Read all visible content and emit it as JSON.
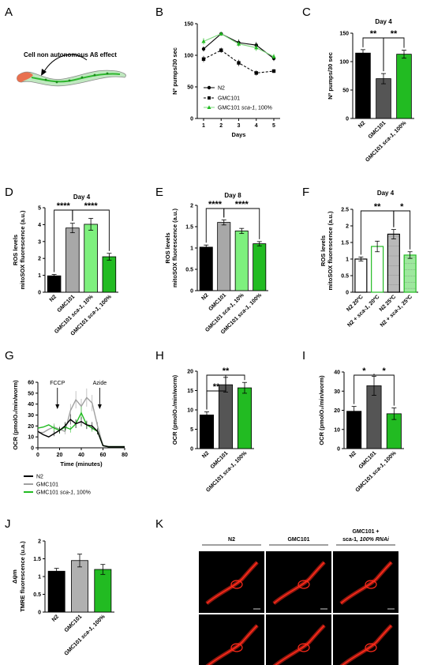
{
  "panel_letters": [
    "A",
    "B",
    "C",
    "D",
    "E",
    "F",
    "G",
    "H",
    "I",
    "J",
    "K"
  ],
  "panel_a": {
    "caption": "Cell non autonomous Aß effect"
  },
  "colors": {
    "n2": "#000000",
    "gmc101": "#9a9a9a",
    "gmc101_dark": "#555555",
    "sca1": "#22bb22",
    "sca1_light": "#7ef07e",
    "axis": "#000000",
    "micro_bg": "#000000",
    "worm_red": "#ff2a1a"
  },
  "chart_data": [
    {
      "panel": "B",
      "type": "line",
      "x": [
        1,
        2,
        3,
        4,
        5
      ],
      "xlabel": "Days",
      "ylabel": "Nº pumps/30 sec",
      "ylim": [
        0,
        150
      ],
      "yticks": [
        0,
        50,
        100,
        150
      ],
      "series": [
        {
          "name": "N2",
          "values": [
            110,
            134,
            120,
            116,
            95
          ],
          "errors": [
            4,
            3,
            5,
            5,
            4
          ],
          "style": "solid-circle"
        },
        {
          "name": "GMC101",
          "values": [
            94,
            108,
            88,
            72,
            75
          ],
          "errors": [
            5,
            4,
            5,
            4,
            3
          ],
          "style": "dashed-square"
        },
        {
          "name_parts": [
            "GMC101 ",
            "sca-1",
            ", 100%"
          ],
          "values": [
            122,
            134,
            118,
            112,
            98
          ],
          "errors": [
            5,
            3,
            4,
            5,
            4
          ],
          "style": "green-triangle"
        }
      ]
    },
    {
      "panel": "C",
      "type": "bar",
      "title": "Day 4",
      "categories": [
        [
          "N2"
        ],
        [
          "GMC101"
        ],
        [
          "GMC101 ",
          "sca-1",
          ", 100%"
        ]
      ],
      "values": [
        115,
        70,
        113
      ],
      "errors": [
        6,
        9,
        7
      ],
      "ylabel": "Nº pumps/30 sec",
      "ylim": [
        0,
        150
      ],
      "yticks": [
        0,
        50,
        100,
        150
      ],
      "significance": [
        {
          "between": [
            0,
            1
          ],
          "label": "**"
        },
        {
          "between": [
            1,
            2
          ],
          "label": "**"
        }
      ]
    },
    {
      "panel": "D",
      "type": "bar",
      "title": "Day 4",
      "categories": [
        [
          "N2"
        ],
        [
          "GMC101"
        ],
        [
          "GMC101 ",
          "sca-1",
          ", 10%"
        ],
        [
          "GMC101 ",
          "sca-1",
          ", 100%"
        ]
      ],
      "values": [
        0.97,
        3.8,
        4.02,
        2.1
      ],
      "errors": [
        0.08,
        0.28,
        0.35,
        0.2
      ],
      "ylabel": [
        "ROS levels",
        "mitoSOX fluorescence (a.u.)"
      ],
      "ylim": [
        0,
        5
      ],
      "yticks": [
        0,
        1,
        2,
        3,
        4,
        5
      ],
      "significance": [
        {
          "between": [
            0,
            1
          ],
          "label": "****"
        },
        {
          "between": [
            1,
            3
          ],
          "label": "****"
        }
      ]
    },
    {
      "panel": "E",
      "type": "bar",
      "title": "Day 8",
      "categories": [
        [
          "N2"
        ],
        [
          "GMC101"
        ],
        [
          "GMC101 ",
          "sca-1",
          ", 10%"
        ],
        [
          "GMC101 ",
          "sca-1",
          ", 100%"
        ]
      ],
      "values": [
        1.02,
        1.6,
        1.4,
        1.1
      ],
      "errors": [
        0.05,
        0.06,
        0.06,
        0.05
      ],
      "ylabel": [
        "ROS levels",
        "mitoSOX fluorescence (a.u.)"
      ],
      "ylim": [
        0,
        2
      ],
      "yticks": [
        0,
        0.5,
        1,
        1.5,
        2
      ],
      "significance": [
        {
          "between": [
            0,
            1
          ],
          "label": "****"
        },
        {
          "between": [
            1,
            3
          ],
          "label": "****"
        }
      ]
    },
    {
      "panel": "F",
      "type": "bar",
      "title": "Day 4",
      "categories": [
        [
          "N2 20ºC"
        ],
        [
          "N2 + ",
          "sca-1",
          ", 20ºC"
        ],
        [
          "N2 25ºC"
        ],
        [
          "N2 + ",
          "sca-1",
          ", 25ºC"
        ]
      ],
      "values": [
        1.0,
        1.38,
        1.75,
        1.12
      ],
      "errors": [
        0.06,
        0.16,
        0.14,
        0.1
      ],
      "ylabel": [
        "ROS levels",
        "mitoSOX fluorescence (a.u.)"
      ],
      "ylim": [
        0,
        2.5
      ],
      "yticks": [
        0,
        0.5,
        1,
        1.5,
        2,
        2.5
      ],
      "significance": [
        {
          "between": [
            0,
            2
          ],
          "label": "**"
        },
        {
          "between": [
            2,
            3
          ],
          "label": "*"
        }
      ]
    },
    {
      "panel": "G",
      "type": "line",
      "xlabel": "Time (minutes)",
      "ylabel": "OCR (pmolO₂/min/worm)",
      "xlim": [
        0,
        80
      ],
      "xticks": [
        0,
        20,
        40,
        60,
        80
      ],
      "ylim": [
        0,
        60
      ],
      "yticks": [
        0,
        10,
        20,
        30,
        40,
        50,
        60
      ],
      "annotations": [
        {
          "label": "FCCP",
          "x": 18
        },
        {
          "label": "Azide",
          "x": 57
        }
      ],
      "series": [
        {
          "name": "N2",
          "x": [
            0,
            5,
            10,
            15,
            20,
            25,
            30,
            35,
            40,
            45,
            50,
            55,
            60,
            65,
            70,
            75,
            80
          ],
          "values": [
            15,
            12,
            10,
            13,
            16,
            20,
            26,
            22,
            24,
            21,
            20,
            15,
            2,
            1,
            1,
            1,
            1
          ]
        },
        {
          "name": "GMC101",
          "x": [
            0,
            5,
            10,
            15,
            20,
            25,
            30,
            35,
            40,
            45,
            50,
            55,
            60,
            65,
            70,
            75,
            80
          ],
          "values": [
            14,
            14,
            17,
            19,
            17,
            15,
            34,
            44,
            38,
            46,
            41,
            20,
            2,
            1,
            1,
            1,
            1
          ]
        },
        {
          "name_parts": [
            "GMC101 ",
            "sca-1",
            ", 100%"
          ],
          "x": [
            0,
            5,
            10,
            15,
            20,
            25,
            30,
            35,
            40,
            45,
            50,
            55,
            60,
            65,
            70,
            75,
            80
          ],
          "values": [
            18,
            19,
            21,
            18,
            16,
            19,
            17,
            22,
            32,
            21,
            18,
            15,
            2,
            1,
            1,
            1,
            1
          ]
        }
      ]
    },
    {
      "panel": "H",
      "type": "bar",
      "categories": [
        [
          "N2"
        ],
        [
          "GMC101"
        ],
        [
          "GMC101 ",
          "sca-1",
          ", 100%"
        ]
      ],
      "values": [
        8.7,
        16.5,
        15.7
      ],
      "errors": [
        0.8,
        1.9,
        1.4
      ],
      "ylabel": "OCR (pmolO₂/min/worm)",
      "ylim": [
        0,
        20
      ],
      "yticks": [
        0,
        5,
        10,
        15,
        20
      ],
      "significance": [
        {
          "between": [
            0,
            1
          ],
          "label": "**"
        },
        {
          "between": [
            0,
            2
          ],
          "label": "**"
        }
      ]
    },
    {
      "panel": "I",
      "type": "bar",
      "categories": [
        [
          "N2"
        ],
        [
          "GMC101"
        ],
        [
          "GMC101 ",
          "sca-1",
          ", 100%"
        ]
      ],
      "values": [
        19.5,
        32.8,
        18.2
      ],
      "errors": [
        2.5,
        5.0,
        3.0
      ],
      "ylabel": "OCR (pmolO₂/min/worm)",
      "ylim": [
        0,
        40
      ],
      "yticks": [
        0,
        10,
        20,
        30,
        40
      ],
      "significance": [
        {
          "between": [
            0,
            1
          ],
          "label": "*"
        },
        {
          "between": [
            1,
            2
          ],
          "label": "*"
        }
      ]
    },
    {
      "panel": "J",
      "type": "bar",
      "categories": [
        [
          "N2"
        ],
        [
          "GMC101"
        ],
        [
          "GMC101 ",
          "sca-1",
          ", 100%"
        ]
      ],
      "values": [
        1.15,
        1.45,
        1.2
      ],
      "errors": [
        0.08,
        0.18,
        0.14
      ],
      "ylabel": [
        "Δψ",
        "m",
        "TMRE fluorescence (u.a.)"
      ],
      "ylim": [
        0,
        2
      ],
      "yticks": [
        0,
        0.5,
        1,
        1.5,
        2
      ]
    }
  ],
  "panel_k": {
    "columns": [
      [
        "N2"
      ],
      [
        "GMC101"
      ],
      [
        "GMC101 +",
        "sca-1",
        ", 100% RNAi"
      ]
    ],
    "rows": 2
  }
}
